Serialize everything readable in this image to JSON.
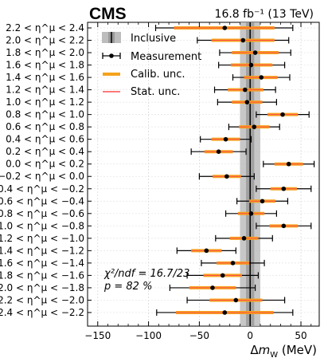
{
  "header": {
    "experiment": "CMS",
    "luminosity": "16.8 fb⁻¹ (13 TeV)"
  },
  "legend": {
    "inclusive": "Inclusive",
    "measurement": "Measurement",
    "calib": "Calib. unc.",
    "stat": "Stat. unc."
  },
  "annotation": {
    "chi2": "χ²/ndf = 16.7/23",
    "pvalue": "p = 82 %"
  },
  "colors": {
    "calib": "#f5a21b",
    "stat": "#ff4d4d",
    "inclusive_band": "#bdbdbd",
    "inclusive_line": "#000000",
    "marker": "#000000"
  },
  "chart_data": {
    "type": "scatter",
    "xlabel": "Δm_W (MeV)",
    "xlim": [
      -160,
      68
    ],
    "xticks": [
      -150,
      -100,
      -50,
      0,
      50
    ],
    "grid": true,
    "legend_position": "top-left",
    "inclusive": {
      "value": 0,
      "band": [
        -10,
        10
      ],
      "inner_band": [
        -4,
        4
      ]
    },
    "bins": [
      {
        "label": "2.2 < η^μ < 2.4",
        "value": -25,
        "total": [
          -93,
          42
        ],
        "calib": [
          -75,
          24
        ]
      },
      {
        "label": "2.0 < η^μ < 2.2",
        "value": -7,
        "total": [
          -52,
          38
        ],
        "calib": [
          -38,
          24
        ]
      },
      {
        "label": "1.8 < η^μ < 2.0",
        "value": 5,
        "total": [
          -30,
          40
        ],
        "calib": [
          -18,
          28
        ]
      },
      {
        "label": "1.6 < η^μ < 1.8",
        "value": 1,
        "total": [
          -31,
          34
        ],
        "calib": [
          -19,
          22
        ]
      },
      {
        "label": "1.4 < η^μ < 1.6",
        "value": 11,
        "total": [
          -17,
          39
        ],
        "calib": [
          -6,
          27
        ]
      },
      {
        "label": "1.2 < η^μ < 1.4",
        "value": -5,
        "total": [
          -35,
          25
        ],
        "calib": [
          -22,
          13
        ]
      },
      {
        "label": "1.0 < η^μ < 1.2",
        "value": -3,
        "total": [
          -32,
          26
        ],
        "calib": [
          -18,
          12
        ]
      },
      {
        "label": "0.8 < η^μ < 1.0",
        "value": 32,
        "total": [
          6,
          58
        ],
        "calib": [
          17,
          47
        ]
      },
      {
        "label": "0.6 < η^μ < 0.8",
        "value": 4,
        "total": [
          -21,
          29
        ],
        "calib": [
          -11,
          19
        ]
      },
      {
        "label": "0.4 < η^μ < 0.6",
        "value": -24,
        "total": [
          -49,
          1
        ],
        "calib": [
          -38,
          -10
        ]
      },
      {
        "label": "0.2 < η^μ < 0.4",
        "value": -31,
        "total": [
          -58,
          -4
        ],
        "calib": [
          -45,
          -17
        ]
      },
      {
        "label": "0.0 < η^μ < 0.2",
        "value": 38,
        "total": [
          13,
          63
        ],
        "calib": [
          24,
          52
        ]
      },
      {
        "label": "−0.2 < η^μ < 0.0",
        "value": -23,
        "total": [
          -50,
          4
        ],
        "calib": [
          -37,
          -9
        ]
      },
      {
        "label": "−0.4 < η^μ < −0.2",
        "value": 33,
        "total": [
          6,
          60
        ],
        "calib": [
          20,
          46
        ]
      },
      {
        "label": "−0.6 < η^μ < −0.4",
        "value": 12,
        "total": [
          -13,
          37
        ],
        "calib": [
          -1,
          25
        ]
      },
      {
        "label": "−0.8 < η^μ < −0.6",
        "value": 1,
        "total": [
          -24,
          26
        ],
        "calib": [
          -12,
          14
        ]
      },
      {
        "label": "−1.0 < η^μ < −0.8",
        "value": 33,
        "total": [
          6,
          60
        ],
        "calib": [
          19,
          47
        ]
      },
      {
        "label": "−1.2 < η^μ < −1.0",
        "value": -6,
        "total": [
          -34,
          22
        ],
        "calib": [
          -20,
          8
        ]
      },
      {
        "label": "−1.4 < η^μ < −1.2",
        "value": -43,
        "total": [
          -72,
          -14
        ],
        "calib": [
          -58,
          -28
        ]
      },
      {
        "label": "−1.6 < η^μ < −1.4",
        "value": -17,
        "total": [
          -48,
          14
        ],
        "calib": [
          -33,
          -1
        ]
      },
      {
        "label": "−1.8 < η^μ < −1.6",
        "value": -27,
        "total": [
          -62,
          8
        ],
        "calib": [
          -46,
          -8
        ]
      },
      {
        "label": "−2.0 < η^μ < −1.8",
        "value": -37,
        "total": [
          -79,
          5
        ],
        "calib": [
          -60,
          -14
        ]
      },
      {
        "label": "−2.2 < η^μ < −2.0",
        "value": -14,
        "total": [
          -62,
          34
        ],
        "calib": [
          -40,
          12
        ]
      },
      {
        "label": "−2.4 < η^μ < −2.2",
        "value": -25,
        "total": [
          -92,
          42
        ],
        "calib": [
          -73,
          23
        ]
      }
    ]
  }
}
